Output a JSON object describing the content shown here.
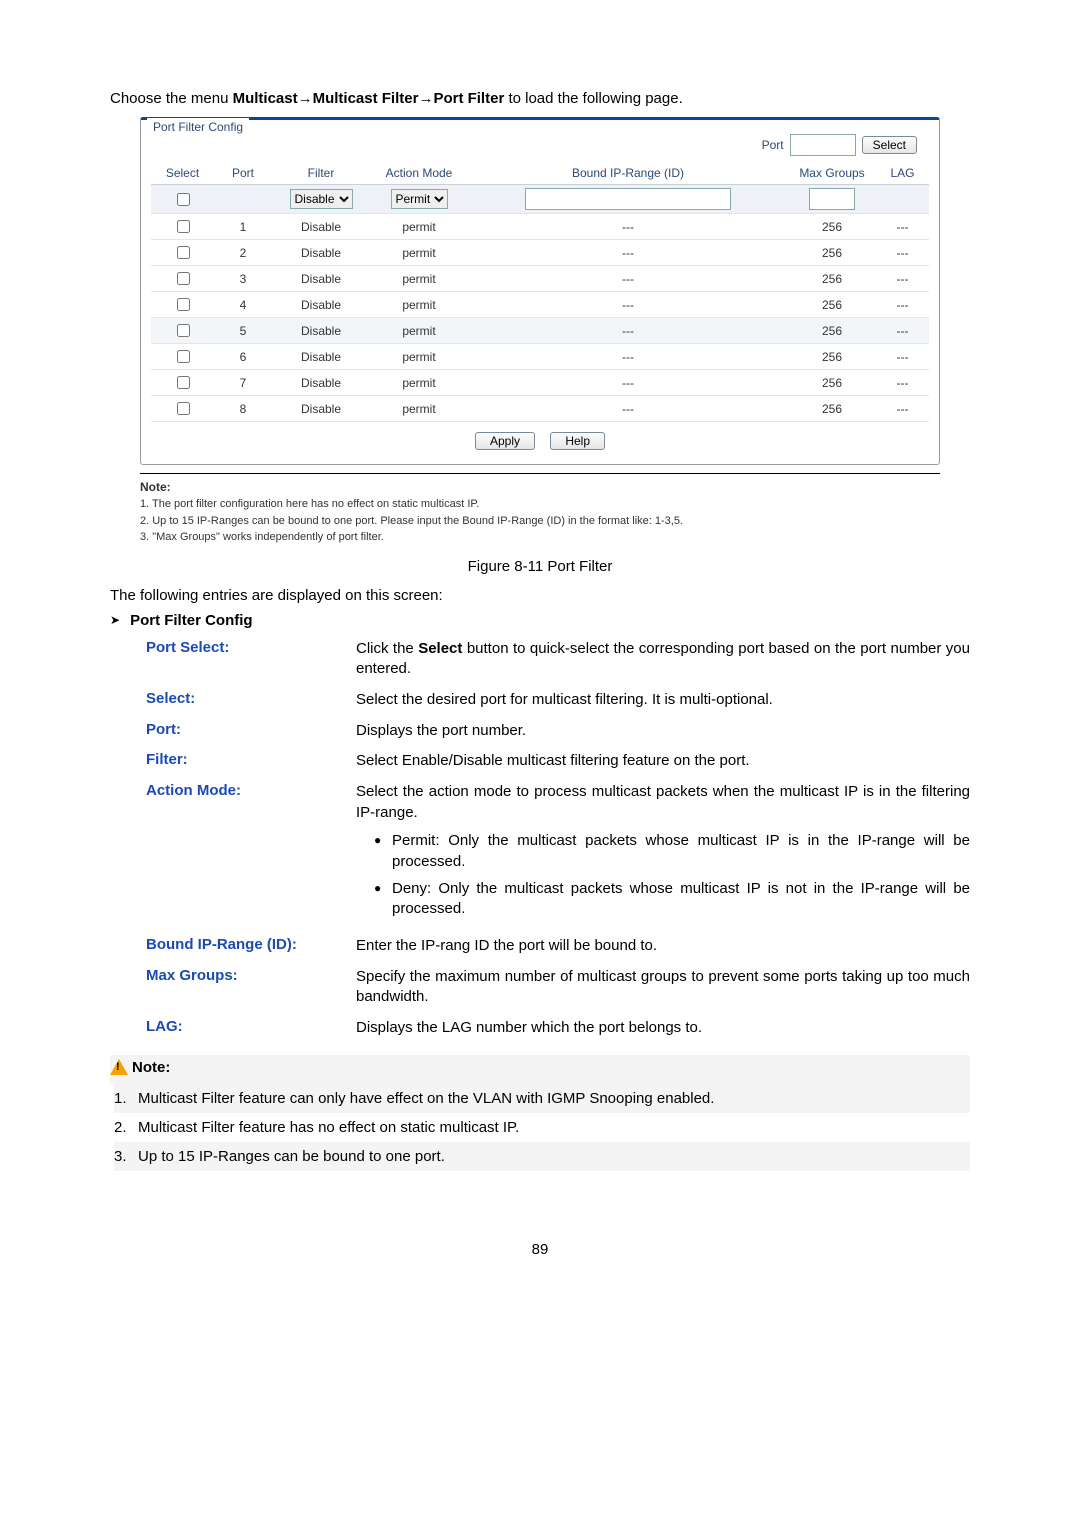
{
  "intro": {
    "prefix": "Choose the menu ",
    "path": "Multicast→Multicast Filter→Port Filter",
    "suffix": " to load the following page."
  },
  "panel": {
    "legend": "Port Filter Config",
    "port_label": "Port",
    "select_btn": "Select",
    "headers": {
      "select": "Select",
      "port": "Port",
      "filter": "Filter",
      "action": "Action Mode",
      "bound": "Bound IP-Range (ID)",
      "max": "Max Groups",
      "lag": "LAG"
    },
    "controls": {
      "filter_sel": "Disable",
      "action_sel": "Permit"
    },
    "rows": [
      {
        "port": "1",
        "filter": "Disable",
        "action": "permit",
        "bound": "---",
        "max": "256",
        "lag": "---",
        "alt": false
      },
      {
        "port": "2",
        "filter": "Disable",
        "action": "permit",
        "bound": "---",
        "max": "256",
        "lag": "---",
        "alt": false
      },
      {
        "port": "3",
        "filter": "Disable",
        "action": "permit",
        "bound": "---",
        "max": "256",
        "lag": "---",
        "alt": false
      },
      {
        "port": "4",
        "filter": "Disable",
        "action": "permit",
        "bound": "---",
        "max": "256",
        "lag": "---",
        "alt": false
      },
      {
        "port": "5",
        "filter": "Disable",
        "action": "permit",
        "bound": "---",
        "max": "256",
        "lag": "---",
        "alt": true
      },
      {
        "port": "6",
        "filter": "Disable",
        "action": "permit",
        "bound": "---",
        "max": "256",
        "lag": "---",
        "alt": false
      },
      {
        "port": "7",
        "filter": "Disable",
        "action": "permit",
        "bound": "---",
        "max": "256",
        "lag": "---",
        "alt": false
      },
      {
        "port": "8",
        "filter": "Disable",
        "action": "permit",
        "bound": "---",
        "max": "256",
        "lag": "---",
        "alt": false
      }
    ],
    "apply_btn": "Apply",
    "help_btn": "Help"
  },
  "panel_note": {
    "hdr": "Note:",
    "n1": "1. The port filter configuration here has no effect on static multicast IP.",
    "n2": "2. Up to 15 IP-Ranges can be bound to one port. Please input the Bound IP-Range (ID) in the format like: 1-3,5.",
    "n3": "3. \"Max Groups\" works independently of port filter."
  },
  "caption": "Figure 8-11 Port Filter",
  "sub": "The following entries are displayed on this screen:",
  "section_title": "Port Filter Config",
  "defs": {
    "port_select": {
      "label": "Port Select:",
      "body_pre": "Click the ",
      "body_bold": "Select",
      "body_post": " button to quick-select the corresponding port based on the port number you entered."
    },
    "select": {
      "label": "Select:",
      "body": "Select the desired port for multicast filtering. It is multi-optional."
    },
    "port": {
      "label": "Port:",
      "body": "Displays the port number."
    },
    "filter": {
      "label": "Filter:",
      "body": "Select Enable/Disable multicast filtering feature on the port."
    },
    "action": {
      "label": "Action Mode:",
      "body": "Select the action mode to process multicast packets when the multicast IP is in the filtering IP-range.",
      "b1": "Permit: Only the multicast packets whose multicast IP is in the IP-range will be processed.",
      "b2": "Deny: Only the multicast packets whose multicast IP is not in the IP-range will be processed."
    },
    "bound": {
      "label": "Bound IP-Range (ID):",
      "body": "Enter the IP-rang ID the port will be bound to."
    },
    "max": {
      "label": "Max Groups:",
      "body": "Specify the maximum number of multicast groups to prevent some ports taking up too much bandwidth."
    },
    "lag": {
      "label": "LAG:",
      "body": "Displays the LAG number which the port belongs to."
    }
  },
  "note": {
    "hdr": "Note:",
    "items": [
      "Multicast Filter feature can only have effect on the VLAN with IGMP Snooping enabled.",
      "Multicast Filter feature has no effect on static multicast IP.",
      "Up to 15 IP-Ranges can be bound to one port."
    ]
  },
  "page_number": "89"
}
